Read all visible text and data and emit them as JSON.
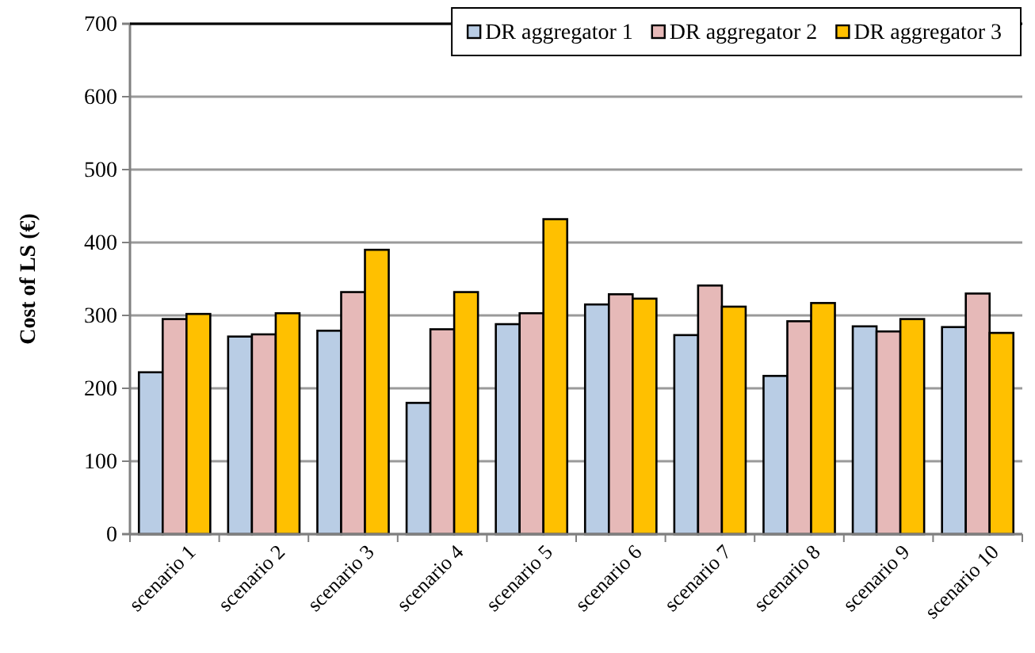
{
  "chart_data": {
    "type": "bar",
    "ylabel": "Cost of LS (€)",
    "categories": [
      "scenario 1",
      "scenario 2",
      "scenario 3",
      "scenario 4",
      "scenario 5",
      "scenario 6",
      "scenario 7",
      "scenario 8",
      "scenario 9",
      "scenario 10"
    ],
    "series": [
      {
        "name": "DR aggregator 1",
        "color": "#b9cde5",
        "values": [
          222,
          271,
          279,
          180,
          288,
          315,
          273,
          217,
          285,
          284
        ]
      },
      {
        "name": "DR aggregator 2",
        "color": "#e6b9b8",
        "values": [
          295,
          274,
          332,
          281,
          303,
          329,
          341,
          292,
          278,
          330
        ]
      },
      {
        "name": "DR aggregator 3",
        "color": "#ffc000",
        "values": [
          302,
          303,
          390,
          332,
          432,
          323,
          312,
          317,
          295,
          276
        ]
      }
    ],
    "ylim": [
      0,
      700
    ],
    "yticks": [
      0,
      100,
      200,
      300,
      400,
      500,
      600,
      700
    ],
    "grid": "y",
    "legend": "top right"
  }
}
